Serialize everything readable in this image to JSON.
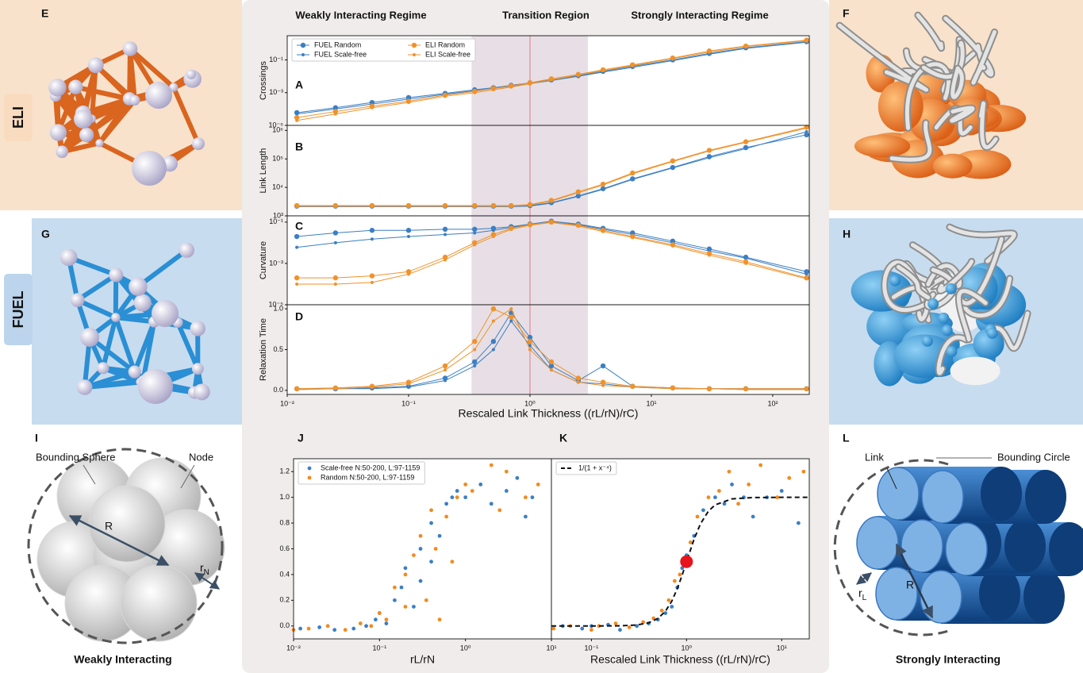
{
  "figure": {
    "regimes": [
      "Weakly Interacting Regime",
      "Transition Region",
      "Strongly Interacting Regime"
    ],
    "groups": {
      "eli": "ELI",
      "fuel": "FUEL"
    },
    "panel_letters": {
      "e": "E",
      "f": "F",
      "g": "G",
      "h": "H",
      "i": "I",
      "l": "L"
    },
    "schematic_weak": {
      "bounding": "Bounding Sphere",
      "node": "Node",
      "radius": "R",
      "node_radius": {
        "base": "r",
        "sub": "N"
      },
      "caption": "Weakly Interacting"
    },
    "schematic_strong": {
      "link": "Link",
      "bounding": "Bounding Circle",
      "link_radius": {
        "base": "r",
        "sub": "L"
      },
      "radius": "R",
      "caption": "Strongly Interacting"
    }
  },
  "chart_data": [
    {
      "type": "line",
      "label": "A",
      "ylabel": "Crossings",
      "xlog": true,
      "ylog": true,
      "xlim": [
        0.01,
        200
      ],
      "ylim": [
        1e-05,
        3
      ],
      "yticks": [
        {
          "value": 1e-05,
          "label": "10⁻⁵"
        },
        {
          "value": 0.001,
          "label": "10⁻³"
        },
        {
          "value": 0.1,
          "label": "10⁻¹"
        }
      ],
      "shade_x": [
        0.33,
        3
      ],
      "shade_color": "#e7dfe5",
      "vline_x": 1,
      "vline_color": "#e79aa6",
      "legend": "upper left",
      "legend_columns": 2,
      "x": [
        0.012,
        0.025,
        0.05,
        0.1,
        0.2,
        0.35,
        0.5,
        0.7,
        1,
        1.5,
        2.5,
        4,
        7,
        15,
        30,
        60,
        190
      ],
      "series": [
        {
          "name": "FUEL Random",
          "color": "#3b7fc4",
          "marker_size": 3.2,
          "values": [
            6e-05,
            0.00012,
            0.00025,
            0.0005,
            0.0009,
            0.0015,
            0.002,
            0.0028,
            0.004,
            0.006,
            0.011,
            0.02,
            0.04,
            0.1,
            0.25,
            0.55,
            1.3
          ]
        },
        {
          "name": "FUEL Scale-free",
          "color": "#3b7fc4",
          "marker_size": 2,
          "values": [
            5e-05,
            0.0001,
            0.0002,
            0.0004,
            0.0008,
            0.0013,
            0.0018,
            0.0025,
            0.0035,
            0.0055,
            0.01,
            0.018,
            0.035,
            0.09,
            0.22,
            0.5,
            1.2
          ]
        },
        {
          "name": "ELI Random",
          "color": "#f0922b",
          "marker_size": 3.2,
          "values": [
            3e-05,
            7e-05,
            0.00015,
            0.0003,
            0.0007,
            0.0012,
            0.0018,
            0.0026,
            0.004,
            0.007,
            0.013,
            0.025,
            0.05,
            0.13,
            0.35,
            0.7,
            1.6
          ]
        },
        {
          "name": "ELI Scale-free",
          "color": "#f0922b",
          "marker_size": 2,
          "values": [
            2e-05,
            5e-05,
            0.00012,
            0.00025,
            0.0006,
            0.001,
            0.0015,
            0.0022,
            0.0035,
            0.006,
            0.012,
            0.022,
            0.045,
            0.12,
            0.3,
            0.65,
            1.5
          ]
        }
      ]
    },
    {
      "type": "line",
      "label": "B",
      "ylabel": "Link Length",
      "xlog": true,
      "ylog": true,
      "xlim": [
        0.01,
        200
      ],
      "ylim": [
        1000,
        1500000
      ],
      "yticks": [
        {
          "value": 1000,
          "label": "10³"
        },
        {
          "value": 10000,
          "label": "10⁴"
        },
        {
          "value": 100000,
          "label": "10⁵"
        },
        {
          "value": 1000000,
          "label": "10⁶"
        }
      ],
      "shade_x": [
        0.33,
        3
      ],
      "shade_color": "#e7dfe5",
      "vline_x": 1,
      "vline_color": "#e79aa6",
      "x": [
        0.012,
        0.025,
        0.05,
        0.1,
        0.2,
        0.35,
        0.5,
        0.7,
        1,
        1.5,
        2.5,
        4,
        7,
        15,
        30,
        60,
        190
      ],
      "series": [
        {
          "color": "#3b7fc4",
          "marker_size": 3.2,
          "values": [
            2200,
            2200,
            2200,
            2200,
            2200,
            2200,
            2200,
            2200,
            2300,
            2900,
            5000,
            9000,
            20000,
            50000,
            120000,
            250000,
            700000
          ]
        },
        {
          "color": "#3b7fc4",
          "marker_size": 2,
          "values": [
            2100,
            2100,
            2100,
            2100,
            2100,
            2100,
            2100,
            2100,
            2200,
            2800,
            4800,
            8500,
            19000,
            48000,
            110000,
            230000,
            900000
          ]
        },
        {
          "color": "#f0922b",
          "marker_size": 3.2,
          "values": [
            2300,
            2300,
            2300,
            2300,
            2300,
            2300,
            2300,
            2300,
            2500,
            3500,
            7000,
            13000,
            32000,
            85000,
            200000,
            400000,
            1300000
          ]
        },
        {
          "color": "#f0922b",
          "marker_size": 2,
          "values": [
            2200,
            2200,
            2200,
            2200,
            2200,
            2200,
            2200,
            2200,
            2400,
            3300,
            6500,
            12000,
            30000,
            80000,
            190000,
            380000,
            1200000
          ]
        }
      ]
    },
    {
      "type": "line",
      "label": "C",
      "ylabel": "Curvature",
      "xlog": true,
      "ylog": true,
      "xlim": [
        0.01,
        200
      ],
      "ylim": [
        1e-05,
        0.2
      ],
      "yticks": [
        {
          "value": 1e-05,
          "label": "10⁻⁵"
        },
        {
          "value": 0.001,
          "label": "10⁻³"
        },
        {
          "value": 0.1,
          "label": "10⁻¹"
        }
      ],
      "shade_x": [
        0.33,
        3
      ],
      "shade_color": "#e7dfe5",
      "vline_x": 1,
      "vline_color": "#e79aa6",
      "x": [
        0.012,
        0.025,
        0.05,
        0.1,
        0.2,
        0.35,
        0.5,
        0.7,
        1,
        1.5,
        2.5,
        4,
        7,
        15,
        30,
        60,
        190
      ],
      "series": [
        {
          "color": "#3b7fc4",
          "marker_size": 3.2,
          "values": [
            0.02,
            0.03,
            0.04,
            0.04,
            0.045,
            0.045,
            0.05,
            0.06,
            0.08,
            0.11,
            0.08,
            0.05,
            0.03,
            0.012,
            0.005,
            0.002,
            0.0004
          ]
        },
        {
          "color": "#3b7fc4",
          "marker_size": 2,
          "values": [
            0.006,
            0.01,
            0.015,
            0.02,
            0.025,
            0.03,
            0.04,
            0.055,
            0.075,
            0.1,
            0.075,
            0.045,
            0.025,
            0.01,
            0.004,
            0.0018,
            0.0003
          ]
        },
        {
          "color": "#f0922b",
          "marker_size": 3.2,
          "values": [
            0.0002,
            0.0002,
            0.00025,
            0.0004,
            0.002,
            0.01,
            0.025,
            0.05,
            0.075,
            0.1,
            0.07,
            0.04,
            0.02,
            0.008,
            0.003,
            0.0012,
            0.0002
          ]
        },
        {
          "color": "#f0922b",
          "marker_size": 2,
          "values": [
            0.0001,
            0.0001,
            0.00012,
            0.0003,
            0.0015,
            0.008,
            0.02,
            0.045,
            0.07,
            0.095,
            0.065,
            0.035,
            0.018,
            0.007,
            0.0025,
            0.001,
            0.00018
          ]
        }
      ]
    },
    {
      "type": "line",
      "label": "D",
      "ylabel": "Relaxation Time",
      "xlabel": "Rescaled Link Thickness ((rL/rN)/rC)",
      "xlog": true,
      "ylog": false,
      "xlim": [
        0.01,
        200
      ],
      "ylim": [
        -0.05,
        1.05
      ],
      "xticks": [
        {
          "value": 0.01,
          "label": "10⁻²"
        },
        {
          "value": 0.1,
          "label": "10⁻¹"
        },
        {
          "value": 1,
          "label": "10⁰"
        },
        {
          "value": 10,
          "label": "10¹"
        },
        {
          "value": 100,
          "label": "10²"
        }
      ],
      "yticks": [
        {
          "value": 0,
          "label": "0.0"
        },
        0.5,
        {
          "value": 1,
          "label": "1.0"
        }
      ],
      "shade_x": [
        0.33,
        3
      ],
      "shade_color": "#e7dfe5",
      "vline_x": 1,
      "vline_color": "#e79aa6",
      "x": [
        0.012,
        0.025,
        0.05,
        0.1,
        0.2,
        0.35,
        0.5,
        0.7,
        1,
        1.5,
        2.5,
        4,
        7,
        15,
        30,
        60,
        190
      ],
      "series": [
        {
          "color": "#3b7fc4",
          "marker_size": 3.2,
          "values": [
            0.02,
            0.02,
            0.03,
            0.05,
            0.15,
            0.35,
            0.6,
            0.95,
            0.65,
            0.3,
            0.12,
            0.3,
            0.05,
            0.03,
            0.02,
            0.02,
            0.02
          ]
        },
        {
          "color": "#3b7fc4",
          "marker_size": 2,
          "values": [
            0.01,
            0.02,
            0.02,
            0.04,
            0.12,
            0.3,
            0.5,
            0.85,
            0.55,
            0.25,
            0.1,
            0.08,
            0.04,
            0.02,
            0.02,
            0.01,
            0.01
          ]
        },
        {
          "color": "#f0922b",
          "marker_size": 3.2,
          "values": [
            0.02,
            0.03,
            0.05,
            0.1,
            0.3,
            0.6,
            1.0,
            0.9,
            0.6,
            0.35,
            0.15,
            0.1,
            0.05,
            0.03,
            0.02,
            0.02,
            0.02
          ]
        },
        {
          "color": "#f0922b",
          "marker_size": 2,
          "values": [
            0.01,
            0.02,
            0.04,
            0.08,
            0.25,
            0.5,
            0.85,
            1.0,
            0.5,
            0.25,
            0.1,
            0.06,
            0.04,
            0.02,
            0.02,
            0.01,
            0.01
          ]
        }
      ]
    },
    {
      "type": "scatter",
      "label": "J",
      "xlabel": "rL/rN",
      "xlog": true,
      "ylog": false,
      "xlim": [
        0.01,
        10
      ],
      "ylim": [
        -0.1,
        1.3
      ],
      "xticks": [
        {
          "value": 0.01,
          "label": "10⁻²"
        },
        {
          "value": 0.1,
          "label": "10⁻¹"
        },
        {
          "value": 1,
          "label": "10⁰"
        },
        {
          "value": 10,
          "label": "10¹"
        }
      ],
      "yticks": [
        {
          "value": 0,
          "label": "0.0"
        },
        0.2,
        0.4,
        0.6,
        0.8,
        {
          "value": 1,
          "label": "1.0"
        },
        1.2
      ],
      "legend": "upper left",
      "legend_columns": 1,
      "series": [
        {
          "name": "Scale-free N:50-200, L:97-1159",
          "color": "#3b7fc4",
          "marker_size": 2.4,
          "x": [
            0.012,
            0.02,
            0.03,
            0.05,
            0.07,
            0.09,
            0.1,
            0.12,
            0.15,
            0.18,
            0.2,
            0.25,
            0.3,
            0.3,
            0.4,
            0.4,
            0.5,
            0.6,
            0.7,
            0.8,
            1,
            1.5,
            2,
            3,
            4,
            5,
            6
          ],
          "values": [
            -0.02,
            -0.01,
            -0.03,
            -0.02,
            0.0,
            0.05,
            0.1,
            0.02,
            0.2,
            0.3,
            0.45,
            0.15,
            0.6,
            0.35,
            0.8,
            0.5,
            0.7,
            0.95,
            1.0,
            1.05,
            1.0,
            1.1,
            0.95,
            1.05,
            1.15,
            0.85,
            1.0
          ]
        },
        {
          "name": "Random N:50-200, L:97-1159",
          "color": "#f28a1e",
          "marker_size": 2.4,
          "x": [
            0.01,
            0.015,
            0.025,
            0.04,
            0.06,
            0.08,
            0.1,
            0.12,
            0.15,
            0.2,
            0.2,
            0.25,
            0.3,
            0.35,
            0.4,
            0.45,
            0.5,
            0.6,
            0.7,
            0.8,
            1,
            1.2,
            2,
            2.5,
            3,
            5,
            7
          ],
          "values": [
            -0.03,
            -0.02,
            0.0,
            -0.03,
            0.02,
            0.0,
            0.1,
            0.05,
            0.3,
            0.15,
            0.4,
            0.55,
            0.7,
            0.2,
            0.9,
            0.6,
            0.05,
            0.85,
            0.5,
            1.0,
            1.1,
            1.05,
            1.25,
            0.9,
            1.2,
            1.0,
            1.1
          ]
        }
      ]
    },
    {
      "type": "scatter",
      "label": "K",
      "xlabel": "Rescaled Link Thickness ((rL/rN)/rC)",
      "xlog": true,
      "ylog": false,
      "xlim": [
        0.038,
        19.5
      ],
      "ylim": [
        -0.1,
        1.3
      ],
      "xticks": [
        {
          "value": 0.1,
          "label": "10⁻¹"
        },
        {
          "value": 1,
          "label": "10⁰"
        },
        {
          "value": 10,
          "label": "10¹"
        }
      ],
      "legend": "upper left",
      "legend_columns": 1,
      "highlight": {
        "x": 1,
        "y": 0.5,
        "color": "#e8141c"
      },
      "series": [
        {
          "color": "#3b7fc4",
          "marker_size": 2.4,
          "x": [
            0.05,
            0.08,
            0.1,
            0.15,
            0.2,
            0.3,
            0.4,
            0.5,
            0.6,
            0.7,
            0.8,
            0.9,
            1,
            1.2,
            1.5,
            2,
            2.5,
            3,
            4,
            5,
            7,
            10,
            15
          ],
          "values": [
            0,
            -0.02,
            0,
            0.01,
            -0.03,
            0,
            0.02,
            0.05,
            0.1,
            0.15,
            0.3,
            0.45,
            0.55,
            0.7,
            0.9,
            1.0,
            0.95,
            1.1,
            1.0,
            0.85,
            1.0,
            1.05,
            0.8
          ]
        },
        {
          "color": "#f28a1e",
          "marker_size": 2.4,
          "x": [
            0.04,
            0.06,
            0.1,
            0.12,
            0.18,
            0.25,
            0.35,
            0.45,
            0.55,
            0.65,
            0.75,
            0.85,
            0.95,
            1.1,
            1.3,
            1.7,
            2.2,
            2.8,
            3.5,
            4.5,
            6,
            9,
            12,
            17
          ],
          "values": [
            -0.02,
            0,
            -0.03,
            0.0,
            0.02,
            -0.01,
            0.03,
            0.06,
            0.12,
            0.2,
            0.35,
            0.4,
            0.5,
            0.65,
            0.85,
            1.0,
            1.05,
            1.2,
            0.95,
            1.1,
            1.25,
            1.0,
            1.15,
            1.2
          ]
        },
        {
          "name": "1/(1 + x⁻⁴)",
          "color": "#111111",
          "linestyle": "dashed",
          "x": [
            0.038,
            0.1,
            0.2,
            0.3,
            0.4,
            0.5,
            0.6,
            0.7,
            0.8,
            0.9,
            1,
            1.2,
            1.4,
            1.7,
            2,
            3,
            5,
            10,
            19.5
          ],
          "values": [
            0,
            0.0001,
            0.0016,
            0.008,
            0.025,
            0.0588,
            0.1147,
            0.1936,
            0.2907,
            0.3962,
            0.5,
            0.6747,
            0.7935,
            0.8931,
            0.9412,
            0.9878,
            0.9984,
            0.9999,
            1
          ]
        }
      ]
    }
  ]
}
